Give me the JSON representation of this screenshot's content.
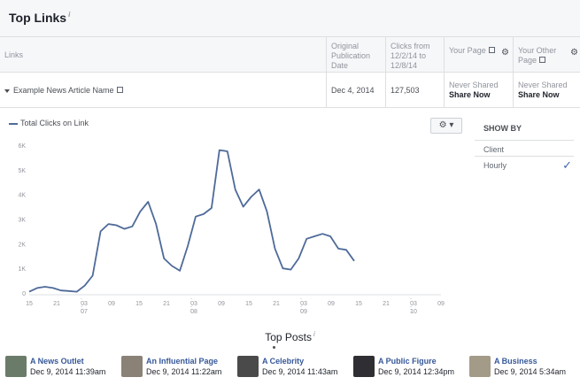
{
  "header": {
    "title": "Top Links",
    "info_glyph": "i"
  },
  "table": {
    "columns": {
      "links": "Links",
      "original_publication_date": "Original Publication Date",
      "clicks": "Clicks from 12/2/14 to 12/8/14",
      "your_page": "Your Page",
      "your_other_page": "Your Other Page"
    },
    "row": {
      "link_name": "Example News Article Name",
      "publication_date": "Dec 4, 2014",
      "clicks": "127,503",
      "your_page_status": "Never Shared",
      "your_page_action": "Share Now",
      "your_other_page_status": "Never Shared",
      "your_other_page_action": "Share Now"
    }
  },
  "chart_settings": {
    "gear_glyph": "⚙",
    "caret_glyph": "▾"
  },
  "show_by": {
    "heading": "SHOW BY",
    "options": [
      {
        "label": "Client",
        "selected": false
      },
      {
        "label": "Hourly",
        "selected": true
      }
    ],
    "check_glyph": "✓"
  },
  "chart_data": {
    "type": "line",
    "title": "",
    "legend": [
      "Total Clicks on Link"
    ],
    "xlabel": "",
    "ylabel": "",
    "ylim": [
      0,
      6000
    ],
    "y_ticks": [
      "0",
      "1K",
      "2K",
      "3K",
      "4K",
      "5K",
      "6K"
    ],
    "x_tick_labels": [
      "15",
      "21",
      "03",
      "09",
      "15",
      "21",
      "03",
      "09",
      "15",
      "21",
      "03",
      "09",
      "15",
      "21",
      "03",
      "09"
    ],
    "x_day_labels": [
      "07",
      "08",
      "09",
      "10"
    ],
    "grid": false,
    "legend_position": "top-left",
    "color": "#4e6a99",
    "series": [
      {
        "name": "Total Clicks on Link",
        "values": [
          50,
          200,
          250,
          200,
          100,
          80,
          50,
          300,
          700,
          2500,
          2800,
          2750,
          2600,
          2700,
          3300,
          3700,
          2800,
          1400,
          1100,
          900,
          1900,
          3100,
          3200,
          3450,
          5800,
          5750,
          4200,
          3500,
          3900,
          4200,
          3300,
          1800,
          1000,
          950,
          1400,
          2200,
          2300,
          2400,
          2300,
          1800,
          1750,
          1300
        ]
      }
    ]
  },
  "top_posts": {
    "title": "Top Posts",
    "info_glyph": "i",
    "items": [
      {
        "name": "A News Outlet",
        "date": "Dec 9, 2014 11:39am",
        "thumb_color": "#6b7b6a"
      },
      {
        "name": "An Influential Page",
        "date": "Dec 9, 2014 11:22am",
        "thumb_color": "#8a8276"
      },
      {
        "name": "A Celebrity",
        "date": "Dec 9, 2014 11:43am",
        "thumb_color": "#4a4a4a"
      },
      {
        "name": "A Public Figure",
        "date": "Dec 9, 2014 12:34pm",
        "thumb_color": "#2f2f33"
      },
      {
        "name": "A Business",
        "date": "Dec 9, 2014 5:34am",
        "thumb_color": "#a39b88"
      }
    ]
  }
}
